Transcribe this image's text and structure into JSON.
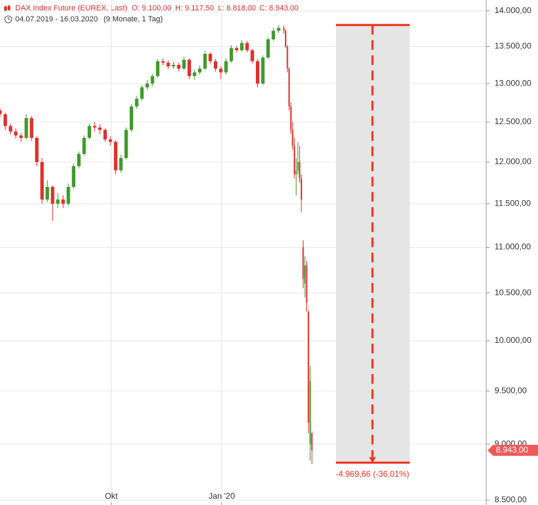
{
  "chart_data": {
    "type": "candlestick",
    "title": "DAX Index Future (EUREX, Last)",
    "ohlc_labels": [
      "O: 9.100,00",
      "H: 9.117,50",
      "L: 8.818,00",
      "C: 8.943,00"
    ],
    "date_range": "04.07.2019 - 16.03.2020",
    "period": "(9 Monate, 1 Tag)",
    "x": [
      0,
      3,
      6,
      9,
      12,
      15,
      18,
      21,
      24,
      27,
      30,
      33,
      36,
      39,
      42,
      45,
      48,
      51,
      54,
      57,
      60,
      63,
      66,
      69,
      72,
      75,
      78,
      81,
      84,
      87,
      90,
      93,
      96,
      99,
      102,
      105,
      108,
      111,
      114,
      117,
      120,
      123,
      126,
      129,
      132,
      135,
      138,
      141,
      144,
      147,
      150,
      153,
      156,
      159,
      162,
      163,
      164,
      165,
      166,
      167,
      168,
      169,
      170,
      171,
      172,
      173,
      174,
      175,
      176,
      177,
      178
    ],
    "open": [
      12650,
      12600,
      12450,
      12380,
      12330,
      12300,
      12550,
      12300,
      12000,
      11550,
      11700,
      11500,
      11550,
      11500,
      11700,
      11950,
      12100,
      12300,
      12450,
      12430,
      12400,
      12280,
      12250,
      11900,
      12050,
      12400,
      12700,
      12800,
      12950,
      13000,
      13100,
      13300,
      13280,
      13230,
      13250,
      13200,
      13320,
      13100,
      13150,
      13200,
      13400,
      13300,
      13200,
      13150,
      13300,
      13480,
      13450,
      13550,
      13450,
      13300,
      13000,
      13350,
      13600,
      13720,
      13760,
      13720,
      13500,
      13200,
      12700,
      12400,
      12200,
      11850,
      11900,
      12000,
      11800,
      11000,
      10600,
      10800,
      10300,
      9000,
      9100
    ],
    "high": [
      12680,
      12620,
      12480,
      12420,
      12360,
      12600,
      12580,
      12320,
      12050,
      11780,
      11720,
      11620,
      11600,
      11740,
      11980,
      12130,
      12330,
      12480,
      12500,
      12470,
      12420,
      12320,
      12270,
      12090,
      12430,
      12730,
      12840,
      12980,
      13050,
      13130,
      13330,
      13340,
      13310,
      13290,
      13280,
      13360,
      13340,
      13190,
      13240,
      13440,
      13420,
      13330,
      13230,
      13340,
      13520,
      13510,
      13590,
      13580,
      13470,
      13330,
      13380,
      13630,
      13760,
      13800,
      13790,
      13740,
      13520,
      13220,
      12750,
      12500,
      12300,
      12050,
      12250,
      12200,
      11850,
      11080,
      10900,
      10850,
      10320,
      9750,
      9117.5
    ],
    "low": [
      12560,
      12400,
      12340,
      12290,
      12250,
      12280,
      12260,
      11950,
      11500,
      11520,
      11300,
      11450,
      11450,
      11480,
      11680,
      11920,
      12080,
      12280,
      12380,
      12350,
      12250,
      12200,
      11850,
      11870,
      12030,
      12380,
      12670,
      12780,
      12920,
      12960,
      13080,
      13240,
      13190,
      13200,
      13160,
      13180,
      13060,
      13050,
      13120,
      13180,
      13260,
      13160,
      13060,
      13120,
      13280,
      13420,
      13430,
      13420,
      13270,
      12950,
      12980,
      13330,
      13580,
      13690,
      13680,
      13480,
      13150,
      12650,
      12350,
      12150,
      11800,
      11600,
      11850,
      11750,
      11400,
      10550,
      10450,
      10300,
      9100,
      8850,
      8818
    ],
    "close": [
      12600,
      12450,
      12380,
      12330,
      12300,
      12550,
      12300,
      12000,
      11550,
      11700,
      11500,
      11550,
      11500,
      11700,
      11950,
      12100,
      12300,
      12450,
      12430,
      12400,
      12280,
      12250,
      11900,
      12050,
      12400,
      12700,
      12800,
      12950,
      13000,
      13100,
      13300,
      13280,
      13230,
      13250,
      13200,
      13320,
      13100,
      13150,
      13200,
      13400,
      13300,
      13200,
      13150,
      13300,
      13480,
      13450,
      13550,
      13450,
      13300,
      13000,
      13350,
      13600,
      13720,
      13760,
      13720,
      13500,
      13200,
      12700,
      12400,
      12200,
      11850,
      11900,
      12000,
      11800,
      11550,
      10650,
      10800,
      10400,
      9200,
      9600,
      8943
    ],
    "up_color": "#3f9a2c",
    "down_color": "#e0302c",
    "xlim": [
      0,
      277.5
    ],
    "xticks": [
      {
        "value": 63.5,
        "label": "Okt"
      },
      {
        "value": 126.5,
        "label": "Jan '20"
      }
    ],
    "ylim": [
      8458,
      14157
    ],
    "log_y": true,
    "yticks": [
      {
        "value": 8500,
        "label": "8.500,00"
      },
      {
        "value": 9000,
        "label": "9.000,00"
      },
      {
        "value": 9500,
        "label": "9.500,00"
      },
      {
        "value": 10000,
        "label": "10.000,00"
      },
      {
        "value": 10500,
        "label": "10.500,00"
      },
      {
        "value": 11000,
        "label": "11.000,00"
      },
      {
        "value": 11500,
        "label": "11.500,00"
      },
      {
        "value": 12000,
        "label": "12.000,00"
      },
      {
        "value": 12500,
        "label": "12.500,00"
      },
      {
        "value": 13000,
        "label": "13.000,00"
      },
      {
        "value": 13500,
        "label": "13.500,00"
      },
      {
        "value": 14000,
        "label": "14.000,00"
      }
    ],
    "grid": true,
    "last_price": {
      "value": 8943,
      "label": "8.943,00"
    },
    "measure": {
      "from": 13800.83,
      "to": 8831.17,
      "label": "-4.969,66 (-36,01%)",
      "color": "#f0321e"
    }
  }
}
